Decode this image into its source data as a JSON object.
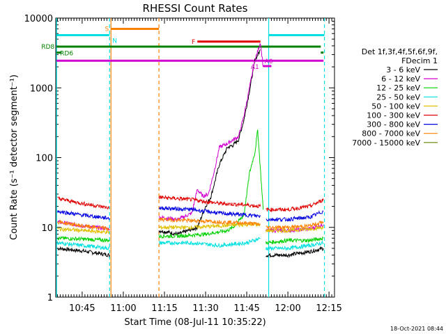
{
  "chart_data": {
    "type": "line",
    "title": "RHESSI Count Rates",
    "xlabel": "Start Time (08-Jul-11 10:35:22)",
    "ylabel": "Count Rate (s⁻¹ detector segment⁻¹)",
    "yscale": "log",
    "ylim": [
      1,
      10000
    ],
    "xlim": [
      "10:35:22",
      "12:17:00"
    ],
    "x_ticks": [
      "10:45",
      "11:00",
      "11:15",
      "11:30",
      "11:45",
      "12:00",
      "12:15"
    ],
    "y_ticks": [
      "1",
      "10",
      "100",
      "1000",
      "10000"
    ],
    "timestamp": "18-Oct-2021 08:44",
    "legend": {
      "position": "right",
      "header": [
        "Det 1f,3f,4f,5f,6f,9f,",
        "FDecim 1"
      ],
      "entries": [
        {
          "label": "3 - 6 keV",
          "color": "#000000"
        },
        {
          "label": "6 - 12 keV",
          "color": "#d000d0"
        },
        {
          "label": "12 - 25 keV",
          "color": "#00d000"
        },
        {
          "label": "25 - 50 keV",
          "color": "#00e0e0"
        },
        {
          "label": "50 - 100 keV",
          "color": "#e0c000"
        },
        {
          "label": "100 - 300 keV",
          "color": "#e00000"
        },
        {
          "label": "300 - 800 keV",
          "color": "#0000e0"
        },
        {
          "label": "800 - 7000 keV",
          "color": "#ff8000"
        },
        {
          "label": "7000 - 15000 keV",
          "color": "#608000"
        }
      ]
    },
    "series": [
      {
        "name": "3 - 6 keV",
        "color": "#000000",
        "segments": [
          {
            "t": [
              "10:36",
              "10:45",
              "10:55"
            ],
            "y": [
              5,
              4.6,
              4
            ]
          },
          {
            "t": [
              "11:13",
              "11:20",
              "11:27",
              "11:30",
              "11:32",
              "11:35",
              "11:38",
              "11:40",
              "11:42",
              "11:44",
              "11:46",
              "11:48",
              "11:50"
            ],
            "y": [
              9,
              8,
              10,
              20,
              28,
              80,
              140,
              150,
              180,
              350,
              900,
              2500,
              3500
            ]
          },
          {
            "t": [
              "11:52",
              "12:00",
              "12:08",
              "12:13"
            ],
            "y": [
              4,
              4,
              4.5,
              5
            ]
          }
        ]
      },
      {
        "name": "6 - 12 keV",
        "color": "#d000d0",
        "segments": [
          {
            "t": [
              "10:36",
              "10:45",
              "10:55"
            ],
            "y": [
              12,
              10.5,
              9.5
            ]
          },
          {
            "t": [
              "11:13",
              "11:20",
              "11:25",
              "11:27",
              "11:29",
              "11:31",
              "11:33",
              "11:35",
              "11:38",
              "11:40",
              "11:42",
              "11:44",
              "11:46",
              "11:48",
              "11:50",
              "11:51"
            ],
            "y": [
              14,
              13,
              16,
              35,
              28,
              30,
              60,
              140,
              160,
              180,
              200,
              400,
              1000,
              2500,
              4500,
              2000
            ]
          },
          {
            "t": [
              "11:52",
              "12:00",
              "12:08",
              "12:13"
            ],
            "y": [
              9,
              9,
              9.5,
              11
            ]
          }
        ]
      },
      {
        "name": "12 - 25 keV",
        "color": "#00d000",
        "segments": [
          {
            "t": [
              "10:36",
              "10:45",
              "10:55"
            ],
            "y": [
              7,
              6.8,
              6.5
            ]
          },
          {
            "t": [
              "11:13",
              "11:20",
              "11:30",
              "11:38",
              "11:40",
              "11:44",
              "11:46",
              "11:48",
              "11:49",
              "11:51"
            ],
            "y": [
              7.5,
              7.5,
              8,
              9,
              10,
              15,
              60,
              120,
              250,
              18
            ]
          },
          {
            "t": [
              "11:52",
              "12:00",
              "12:08",
              "12:13"
            ],
            "y": [
              6,
              6.5,
              6.5,
              7
            ]
          }
        ]
      },
      {
        "name": "25 - 50 keV",
        "color": "#00e0e0",
        "segments": [
          {
            "t": [
              "10:36",
              "10:45",
              "10:55"
            ],
            "y": [
              6,
              5.5,
              5
            ]
          },
          {
            "t": [
              "11:13",
              "11:25",
              "11:35",
              "11:45",
              "11:50"
            ],
            "y": [
              6,
              6,
              5.5,
              6,
              7
            ]
          },
          {
            "t": [
              "11:52",
              "12:00",
              "12:08",
              "12:13"
            ],
            "y": [
              5,
              5,
              5.5,
              6
            ]
          }
        ]
      },
      {
        "name": "50 - 100 keV",
        "color": "#e0c000",
        "segments": [
          {
            "t": [
              "10:36",
              "10:45",
              "10:55"
            ],
            "y": [
              9.5,
              9,
              8.5
            ]
          },
          {
            "t": [
              "11:13",
              "11:25",
              "11:35",
              "11:45",
              "11:50"
            ],
            "y": [
              10,
              10,
              10.5,
              11,
              11
            ]
          },
          {
            "t": [
              "11:52",
              "12:00",
              "12:08",
              "12:13"
            ],
            "y": [
              9,
              9,
              9.5,
              10
            ]
          }
        ]
      },
      {
        "name": "100 - 300 keV",
        "color": "#e00000",
        "segments": [
          {
            "t": [
              "10:36",
              "10:45",
              "10:55"
            ],
            "y": [
              26,
              22,
              19
            ]
          },
          {
            "t": [
              "11:13",
              "11:25",
              "11:35",
              "11:45",
              "11:50"
            ],
            "y": [
              27,
              25,
              22,
              21,
              20
            ]
          },
          {
            "t": [
              "11:52",
              "12:00",
              "12:08",
              "12:13"
            ],
            "y": [
              18,
              18,
              20,
              25
            ]
          }
        ]
      },
      {
        "name": "300 - 800 keV",
        "color": "#0000e0",
        "segments": [
          {
            "t": [
              "10:36",
              "10:45",
              "10:55"
            ],
            "y": [
              17,
              15,
              13.5
            ]
          },
          {
            "t": [
              "11:13",
              "11:25",
              "11:35",
              "11:45",
              "11:50"
            ],
            "y": [
              19,
              18,
              16,
              15,
              14.5
            ]
          },
          {
            "t": [
              "11:52",
              "12:00",
              "12:08",
              "12:13"
            ],
            "y": [
              13,
              13,
              14,
              17
            ]
          }
        ]
      },
      {
        "name": "800 - 7000 keV",
        "color": "#ff8000",
        "segments": [
          {
            "t": [
              "10:36",
              "10:45",
              "10:55"
            ],
            "y": [
              12,
              10.5,
              9.5
            ]
          },
          {
            "t": [
              "11:13",
              "11:25",
              "11:35",
              "11:45",
              "11:50"
            ],
            "y": [
              13,
              12.5,
              12,
              11.5,
              11
            ]
          },
          {
            "t": [
              "11:52",
              "12:00",
              "12:08",
              "12:13"
            ],
            "y": [
              10,
              10,
              10.5,
              12
            ]
          }
        ]
      }
    ],
    "annotations": {
      "vlines": [
        {
          "t": "10:35:40",
          "color": "#00e0e0",
          "dash": false
        },
        {
          "t": "10:55:00",
          "color": "#00e0e0",
          "dash": true
        },
        {
          "t": "10:55:30",
          "color": "#ff8000",
          "dash": false
        },
        {
          "t": "11:13:00",
          "color": "#ff8000",
          "dash": true
        },
        {
          "t": "11:53:00",
          "color": "#00e0e0",
          "dash": false
        },
        {
          "t": "12:13:20",
          "color": "#00e0e0",
          "dash": true
        }
      ],
      "segments": [
        {
          "label": "N",
          "label_color": "#00e0e0",
          "color": "#00e0e0",
          "t0": "10:35:40",
          "t1": "10:55:00",
          "y": 5700
        },
        {
          "label": "",
          "color": "#00e0e0",
          "t0": "11:53:00",
          "t1": "12:13:20",
          "y": 5700
        },
        {
          "label": "S",
          "label_color": "#ff8000",
          "color": "#ff8000",
          "t0": "10:55:30",
          "t1": "11:13:00",
          "y": 7000
        },
        {
          "label": "F",
          "label_color": "#e00000",
          "color": "#e00000",
          "t0": "11:27:00",
          "t1": "11:50:00",
          "y": 4600
        },
        {
          "label": "RD8",
          "label_color": "#008000",
          "color": "#008000",
          "t0": "10:35:40",
          "t1": "12:12:00",
          "y": 3900
        },
        {
          "label": "RD6",
          "label_color": "#008000",
          "color": "#008000",
          "t0": "10:35:40",
          "t1": "10:37:30",
          "y": 3200
        },
        {
          "label": "",
          "color": "#008000",
          "t0": "12:12:00",
          "t1": "12:13:00",
          "y": 3200
        },
        {
          "label": "A1",
          "label_color": "#d000d0",
          "color": "#d000d0",
          "t0": "10:35:40",
          "t1": "12:13:00",
          "y": 2450
        },
        {
          "label": "A0",
          "label_color": "#d000d0",
          "color": "#d000d0",
          "t0": "11:51:00",
          "t1": "11:54:00",
          "y": 2050
        }
      ]
    }
  }
}
